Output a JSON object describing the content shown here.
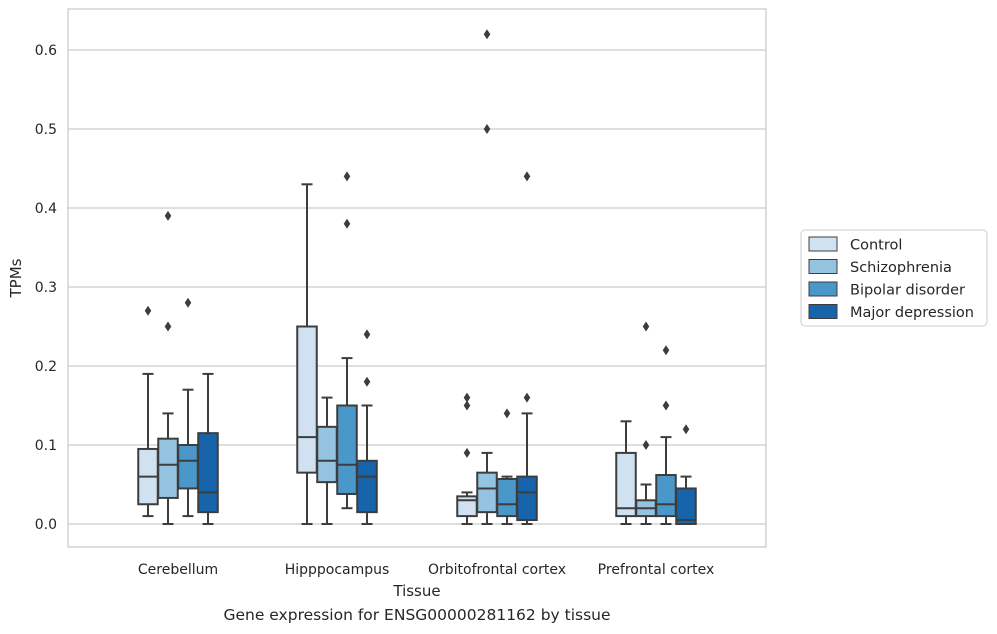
{
  "caption": "Gene expression for ENSG00000281162 by tissue",
  "chart_data": {
    "type": "box",
    "xlabel": "Tissue",
    "ylabel": "TPMs",
    "ylim": [
      -0.03,
      0.655
    ],
    "yticks": [
      0.0,
      0.1,
      0.2,
      0.3,
      0.4,
      0.5,
      0.6
    ],
    "ytick_labels": [
      "0.0",
      "0.1",
      "0.2",
      "0.3",
      "0.4",
      "0.5",
      "0.6"
    ],
    "grid": "horizontal",
    "legend_position": "right",
    "categories": [
      "Cerebellum",
      "Hipppocampus",
      "Orbitofrontal cortex",
      "Prefrontal cortex"
    ],
    "series": [
      {
        "name": "Control",
        "color": "#d0e1f2",
        "boxes": [
          {
            "whislo": 0.01,
            "q1": 0.025,
            "med": 0.06,
            "q3": 0.095,
            "whishi": 0.19,
            "fliers": [
              0.27
            ]
          },
          {
            "whislo": 0.0,
            "q1": 0.065,
            "med": 0.11,
            "q3": 0.25,
            "whishi": 0.43,
            "fliers": []
          },
          {
            "whislo": 0.0,
            "q1": 0.01,
            "med": 0.03,
            "q3": 0.035,
            "whishi": 0.04,
            "fliers": [
              0.09,
              0.15,
              0.16
            ]
          },
          {
            "whislo": 0.0,
            "q1": 0.01,
            "med": 0.02,
            "q3": 0.09,
            "whishi": 0.13,
            "fliers": []
          }
        ]
      },
      {
        "name": "Schizophrenia",
        "color": "#94c4df",
        "boxes": [
          {
            "whislo": 0.0,
            "q1": 0.033,
            "med": 0.075,
            "q3": 0.108,
            "whishi": 0.14,
            "fliers": [
              0.25,
              0.39
            ]
          },
          {
            "whislo": 0.0,
            "q1": 0.053,
            "med": 0.08,
            "q3": 0.123,
            "whishi": 0.16,
            "fliers": []
          },
          {
            "whislo": 0.0,
            "q1": 0.015,
            "med": 0.045,
            "q3": 0.065,
            "whishi": 0.09,
            "fliers": [
              0.5,
              0.62
            ]
          },
          {
            "whislo": 0.0,
            "q1": 0.01,
            "med": 0.02,
            "q3": 0.03,
            "whishi": 0.05,
            "fliers": [
              0.1,
              0.25
            ]
          }
        ]
      },
      {
        "name": "Bipolar disorder",
        "color": "#4a98c9",
        "boxes": [
          {
            "whislo": 0.01,
            "q1": 0.045,
            "med": 0.08,
            "q3": 0.1,
            "whishi": 0.17,
            "fliers": [
              0.28
            ]
          },
          {
            "whislo": 0.02,
            "q1": 0.038,
            "med": 0.075,
            "q3": 0.15,
            "whishi": 0.21,
            "fliers": [
              0.38,
              0.44
            ]
          },
          {
            "whislo": 0.0,
            "q1": 0.01,
            "med": 0.025,
            "q3": 0.057,
            "whishi": 0.06,
            "fliers": [
              0.14
            ]
          },
          {
            "whislo": 0.0,
            "q1": 0.01,
            "med": 0.025,
            "q3": 0.062,
            "whishi": 0.11,
            "fliers": [
              0.15,
              0.22
            ]
          }
        ]
      },
      {
        "name": "Major depression",
        "color": "#1764ab",
        "boxes": [
          {
            "whislo": 0.0,
            "q1": 0.015,
            "med": 0.04,
            "q3": 0.115,
            "whishi": 0.19,
            "fliers": []
          },
          {
            "whislo": 0.0,
            "q1": 0.015,
            "med": 0.06,
            "q3": 0.08,
            "whishi": 0.15,
            "fliers": [
              0.18,
              0.24
            ]
          },
          {
            "whislo": 0.0,
            "q1": 0.005,
            "med": 0.04,
            "q3": 0.06,
            "whishi": 0.14,
            "fliers": [
              0.16,
              0.44
            ]
          },
          {
            "whislo": 0.0,
            "q1": 0.0,
            "med": 0.005,
            "q3": 0.045,
            "whishi": 0.06,
            "fliers": [
              0.12
            ]
          }
        ]
      }
    ]
  }
}
